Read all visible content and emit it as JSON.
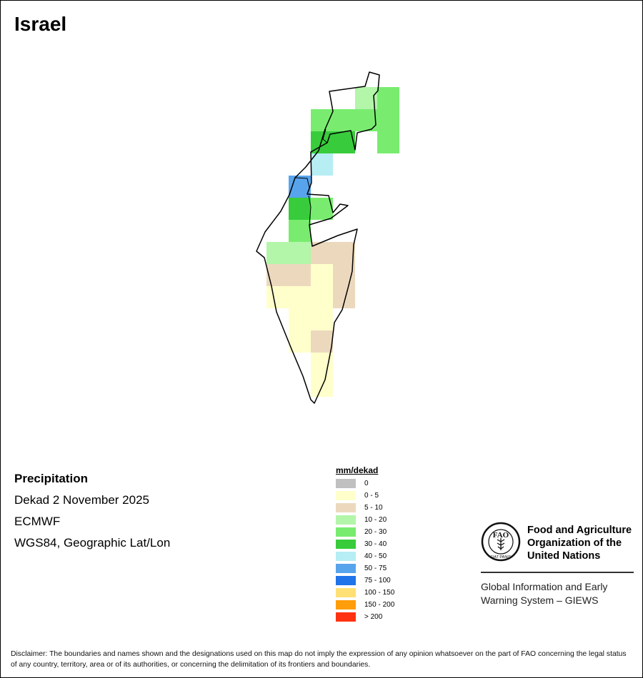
{
  "map": {
    "title": "Israel",
    "cells": [
      {
        "col": 4,
        "row": 0,
        "class": "10 - 20"
      },
      {
        "col": 5,
        "row": 0,
        "class": "20 - 30"
      },
      {
        "col": 3,
        "row": 1,
        "class": "20 - 30"
      },
      {
        "col": 4,
        "row": 1,
        "class": "20 - 30"
      },
      {
        "col": 5,
        "row": 1,
        "class": "20 - 30"
      },
      {
        "col": 2,
        "row": 1,
        "class": "20 - 30"
      },
      {
        "col": 2,
        "row": 2,
        "class": "30 - 40"
      },
      {
        "col": 3,
        "row": 2,
        "class": "30 - 40"
      },
      {
        "col": 5,
        "row": 2,
        "class": "20 - 30"
      },
      {
        "col": 2,
        "row": 3,
        "class": "40 - 50"
      },
      {
        "col": 1,
        "row": 4,
        "class": "50 - 75"
      },
      {
        "col": 1,
        "row": 5,
        "class": "30 - 40"
      },
      {
        "col": 2,
        "row": 5,
        "class": "20 - 30"
      },
      {
        "col": 1,
        "row": 6,
        "class": "20 - 30"
      },
      {
        "col": 0,
        "row": 7,
        "class": "10 - 20"
      },
      {
        "col": 1,
        "row": 7,
        "class": "10 - 20"
      },
      {
        "col": 2,
        "row": 7,
        "class": "5 - 10"
      },
      {
        "col": 3,
        "row": 7,
        "class": "5 - 10"
      },
      {
        "col": 0,
        "row": 8,
        "class": "5 - 10"
      },
      {
        "col": 1,
        "row": 8,
        "class": "5 - 10"
      },
      {
        "col": 2,
        "row": 8,
        "class": "0 - 5"
      },
      {
        "col": 3,
        "row": 8,
        "class": "5 - 10"
      },
      {
        "col": 0,
        "row": 9,
        "class": "0 - 5"
      },
      {
        "col": 1,
        "row": 9,
        "class": "0 - 5"
      },
      {
        "col": 2,
        "row": 9,
        "class": "0 - 5"
      },
      {
        "col": 3,
        "row": 9,
        "class": "5 - 10"
      },
      {
        "col": 1,
        "row": 10,
        "class": "0 - 5"
      },
      {
        "col": 2,
        "row": 10,
        "class": "0 - 5"
      },
      {
        "col": 1,
        "row": 11,
        "class": "0 - 5"
      },
      {
        "col": 2,
        "row": 11,
        "class": "5 - 10"
      },
      {
        "col": 2,
        "row": 12,
        "class": "0 - 5"
      },
      {
        "col": 2,
        "row": 13,
        "class": "0 - 5"
      }
    ]
  },
  "info": {
    "variable": "Precipitation",
    "period": "Dekad 2 November 2025",
    "model": "ECMWF",
    "projection": "WGS84, Geographic Lat/Lon"
  },
  "legend": {
    "title": "mm/dekad",
    "items": [
      {
        "label": "0",
        "color": "#c0c0c0"
      },
      {
        "label": "0 - 5",
        "color": "#ffffcc"
      },
      {
        "label": "5 - 10",
        "color": "#ecd9bd"
      },
      {
        "label": "10 - 20",
        "color": "#b3f5a9"
      },
      {
        "label": "20 - 30",
        "color": "#79ec70"
      },
      {
        "label": "30 - 40",
        "color": "#38cc3c"
      },
      {
        "label": "40 - 50",
        "color": "#b6eef4"
      },
      {
        "label": "50 - 75",
        "color": "#58a4ec"
      },
      {
        "label": "75 - 100",
        "color": "#2173e9"
      },
      {
        "label": "100 - 150",
        "color": "#ffe075"
      },
      {
        "label": "150 - 200",
        "color": "#ff9d0a"
      },
      {
        "label": "> 200",
        "color": "#ff3311"
      }
    ]
  },
  "fao": {
    "logo_letters": "FAO",
    "motto": "FIAT PANIS",
    "name_line1": "Food and Agriculture",
    "name_line2": "Organization of the",
    "name_line3": "United Nations",
    "giews_line1": "Global Information and Early",
    "giews_line2": "Warning System – GIEWS"
  },
  "disclaimer": "Disclaimer: The boundaries and names shown and the designations used on this map do not imply the expression of any opinion whatsoever on the part of FAO concerning the legal status of any country, territory, area or of its authorities, or concerning the delimitation of its frontiers and boundaries."
}
